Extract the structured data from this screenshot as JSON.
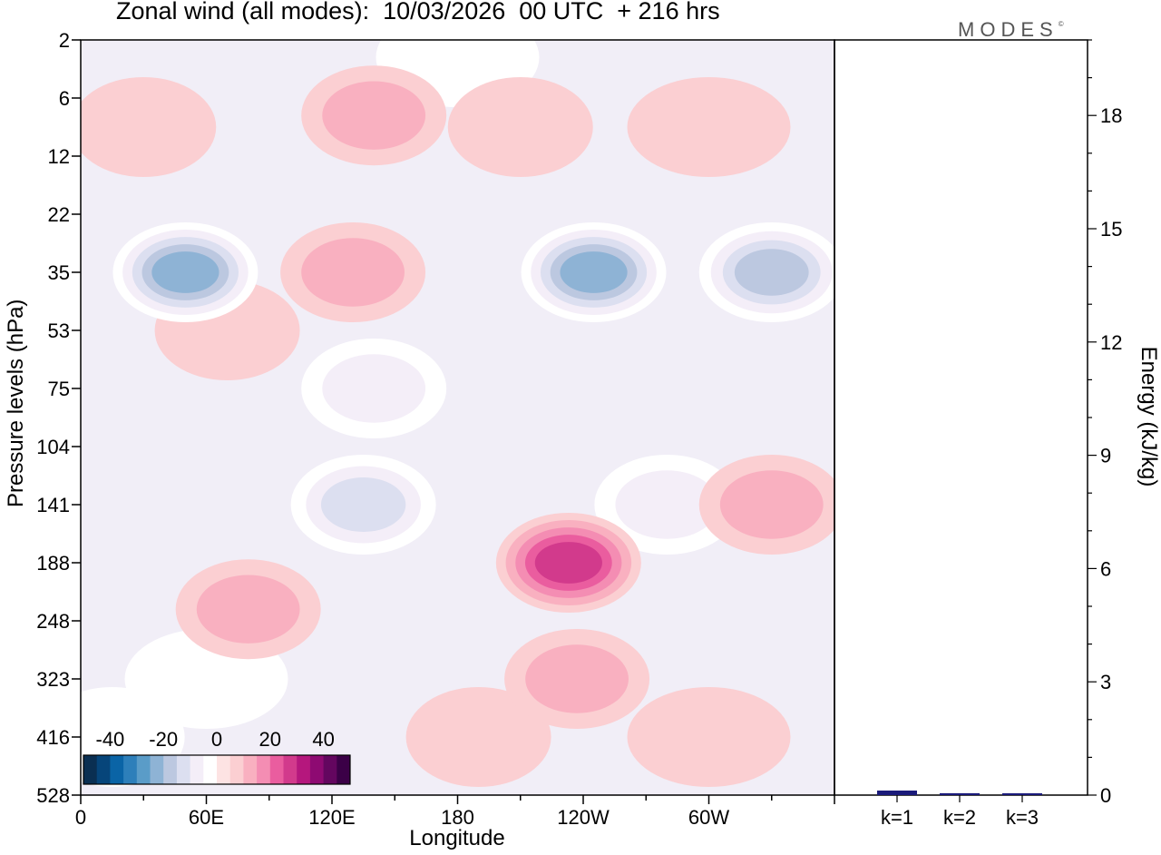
{
  "chart_data": [
    {
      "type": "heatmap",
      "title": "Zonal wind (all modes):  10/03/2026  00 UTC  + 216 hrs",
      "xlabel": "Longitude",
      "ylabel": "Pressure levels (hPa)",
      "x_ticks": [
        {
          "lon": 0,
          "label": "0"
        },
        {
          "lon": 60,
          "label": "60E"
        },
        {
          "lon": 120,
          "label": "120E"
        },
        {
          "lon": 180,
          "label": "180"
        },
        {
          "lon": 240,
          "label": "120W"
        },
        {
          "lon": 300,
          "label": "60W"
        }
      ],
      "xlim": [
        0,
        360
      ],
      "y_levels": [
        "2",
        "6",
        "12",
        "22",
        "35",
        "53",
        "75",
        "104",
        "141",
        "188",
        "248",
        "323",
        "416",
        "528"
      ],
      "colorbar": {
        "labels": [
          "-40",
          "-20",
          "0",
          "20",
          "40"
        ],
        "values": [
          -40,
          -20,
          0,
          20,
          40
        ],
        "colors": [
          "#0a2f52",
          "#06457a",
          "#0a64a6",
          "#2d7fba",
          "#5a9cc8",
          "#8eb3d5",
          "#bcc8e0",
          "#dcdff0",
          "#f4eef8",
          "#ffffff",
          "#fde3e3",
          "#fbcfd2",
          "#f9b0c0",
          "#f48db3",
          "#ea5d9f",
          "#d23a8c",
          "#b5177d",
          "#8e0a72",
          "#63065f",
          "#3b0047"
        ]
      },
      "fields": [
        {
          "lon": 15,
          "lev": 12,
          "value": -5
        },
        {
          "lon": 70,
          "lev": 5,
          "value": 6
        },
        {
          "lon": 130,
          "lev": 4,
          "value": 12
        },
        {
          "lon": 30,
          "lev": 1.5,
          "value": 7
        },
        {
          "lon": 140,
          "lev": 1.3,
          "value": 9
        },
        {
          "lon": 210,
          "lev": 1.5,
          "value": 6
        },
        {
          "lon": 300,
          "lev": 1.5,
          "value": 5
        },
        {
          "lon": 180,
          "lev": 0.3,
          "value": -4
        },
        {
          "lon": 50,
          "lev": 4,
          "value": -26
        },
        {
          "lon": 245,
          "lev": 4,
          "value": -24
        },
        {
          "lon": 330,
          "lev": 4,
          "value": -22
        },
        {
          "lon": 135,
          "lev": 8,
          "value": -14
        },
        {
          "lon": 140,
          "lev": 6,
          "value": -8
        },
        {
          "lon": 80,
          "lev": 9.8,
          "value": 9
        },
        {
          "lon": 233,
          "lev": 9,
          "value": 24
        },
        {
          "lon": 237,
          "lev": 11,
          "value": 9
        },
        {
          "lon": 280,
          "lev": 8,
          "value": -10
        },
        {
          "lon": 330,
          "lev": 8,
          "value": 12
        },
        {
          "lon": 190,
          "lev": 12,
          "value": 2
        },
        {
          "lon": 300,
          "lev": 12,
          "value": 3
        },
        {
          "lon": 60,
          "lev": 11,
          "value": -2
        }
      ]
    },
    {
      "type": "bar",
      "ylabel": "Energy (kJ/kg)",
      "categories": [
        "k=1",
        "k=2",
        "k=3"
      ],
      "values": [
        0.12,
        0.05,
        0.03
      ],
      "ylim": [
        0,
        20
      ],
      "y_ticks": [
        0,
        3,
        6,
        9,
        12,
        15,
        18
      ],
      "bar_color": "#1a1a7a"
    }
  ],
  "logo": {
    "text": "MODES",
    "mark": "©"
  }
}
